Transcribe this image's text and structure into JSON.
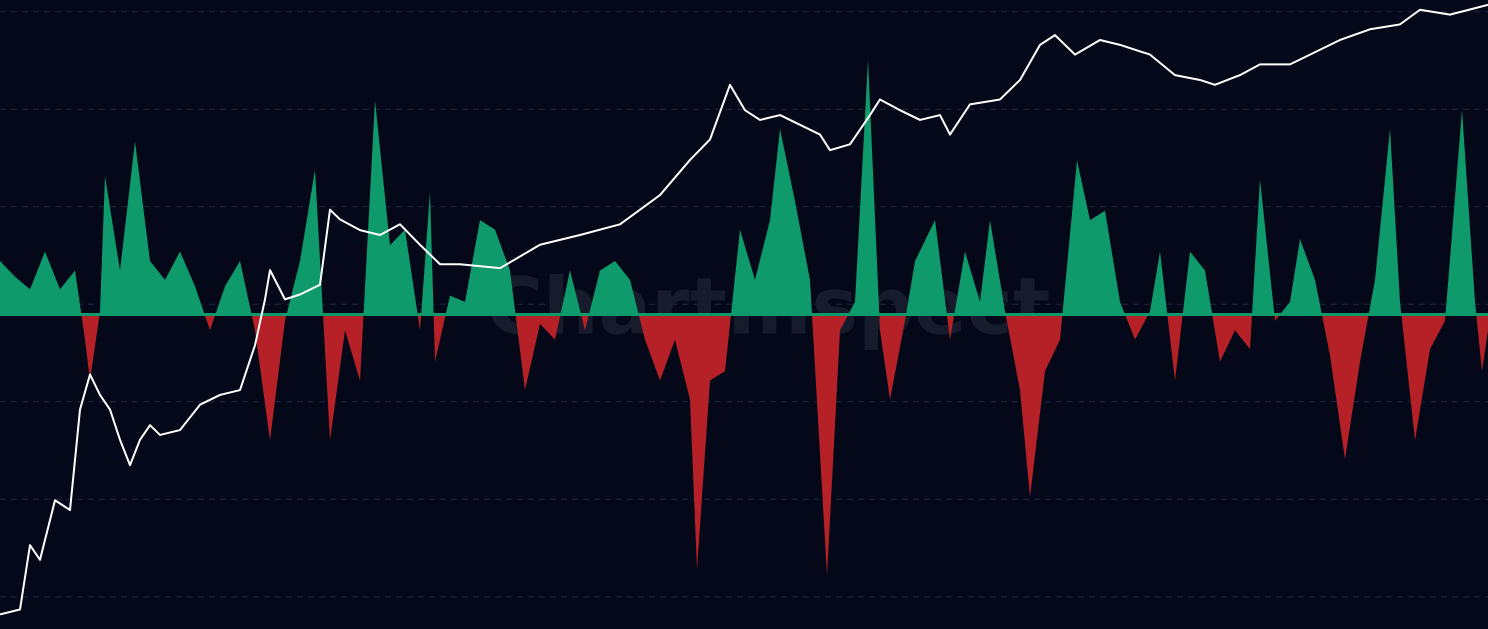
{
  "chart_data": {
    "type": "area",
    "watermark": "ChartInspect",
    "xlim": [
      0,
      1488
    ],
    "ylim": [
      -100,
      100
    ],
    "y2lim": [
      -0.33,
      6.12
    ],
    "y2ticks": [
      0,
      1,
      2,
      3,
      4,
      5,
      6
    ],
    "grid": true,
    "background": "#050818",
    "zero_line_color": "#0d9a6a",
    "series": [
      {
        "type": "area",
        "positive_color": "#0e9a6b",
        "negative_color": "#b52126",
        "x": [
          0,
          15,
          30,
          45,
          60,
          75,
          85,
          90,
          100,
          105,
          120,
          135,
          150,
          165,
          180,
          195,
          210,
          225,
          240,
          255,
          270,
          285,
          300,
          315,
          330,
          345,
          360,
          375,
          390,
          405,
          420,
          430,
          435,
          450,
          465,
          480,
          495,
          510,
          525,
          540,
          555,
          570,
          585,
          600,
          615,
          630,
          645,
          660,
          675,
          690,
          697,
          710,
          725,
          740,
          755,
          770,
          780,
          795,
          810,
          827,
          840,
          855,
          868,
          880,
          890,
          905,
          915,
          935,
          950,
          965,
          980,
          990,
          1005,
          1020,
          1030,
          1045,
          1060,
          1077,
          1090,
          1105,
          1120,
          1135,
          1150,
          1160,
          1175,
          1190,
          1205,
          1220,
          1235,
          1250,
          1260,
          1275,
          1290,
          1300,
          1315,
          1330,
          1345,
          1360,
          1375,
          1390,
          1400,
          1415,
          1430,
          1445,
          1462,
          1475,
          1482,
          1488
        ],
        "values": [
          17,
          12,
          8,
          20,
          8,
          14,
          -8,
          -21,
          1,
          44,
          14,
          55,
          17,
          11,
          20,
          9,
          -5,
          9,
          17,
          -5,
          -40,
          -2,
          17,
          46,
          -40,
          -5,
          -21,
          68,
          22,
          27,
          -5,
          39,
          -15,
          6,
          4,
          30,
          27,
          14,
          -24,
          -3,
          -8,
          14,
          -5,
          14,
          17,
          11,
          -8,
          -21,
          -8,
          -27,
          -81,
          -21,
          -18,
          27,
          11,
          30,
          59,
          36,
          11,
          -83,
          -5,
          4,
          81,
          -5,
          -27,
          -2,
          17,
          30,
          -8,
          20,
          4,
          30,
          1,
          -24,
          -58,
          -18,
          -8,
          49,
          30,
          33,
          4,
          -8,
          1,
          20,
          -21,
          20,
          14,
          -15,
          -5,
          -11,
          43,
          -2,
          4,
          24,
          11,
          -13,
          -46,
          -15,
          11,
          59,
          4,
          -40,
          -11,
          -2,
          65,
          4,
          -18,
          -5
        ]
      },
      {
        "type": "line",
        "axis": "y2",
        "color": "#ffffff",
        "x": [
          0,
          20,
          30,
          40,
          55,
          70,
          80,
          90,
          100,
          110,
          120,
          130,
          140,
          150,
          160,
          180,
          200,
          220,
          240,
          255,
          265,
          270,
          285,
          300,
          320,
          330,
          340,
          360,
          380,
          400,
          420,
          440,
          460,
          500,
          540,
          580,
          620,
          660,
          690,
          710,
          730,
          745,
          760,
          780,
          800,
          820,
          830,
          850,
          870,
          880,
          900,
          920,
          940,
          950,
          970,
          1000,
          1020,
          1040,
          1055,
          1075,
          1100,
          1120,
          1150,
          1175,
          1200,
          1215,
          1240,
          1260,
          1290,
          1320,
          1340,
          1370,
          1400,
          1420,
          1450,
          1488
        ],
        "values": [
          -0.18,
          -0.13,
          0.53,
          0.38,
          0.99,
          0.89,
          1.92,
          2.28,
          2.07,
          1.92,
          1.61,
          1.35,
          1.61,
          1.76,
          1.66,
          1.71,
          1.97,
          2.07,
          2.12,
          2.58,
          3.05,
          3.35,
          3.05,
          3.1,
          3.2,
          3.97,
          3.87,
          3.76,
          3.71,
          3.82,
          3.61,
          3.41,
          3.41,
          3.37,
          3.61,
          3.71,
          3.82,
          4.12,
          4.48,
          4.69,
          5.25,
          4.99,
          4.89,
          4.94,
          4.84,
          4.74,
          4.58,
          4.64,
          4.94,
          5.1,
          4.99,
          4.89,
          4.94,
          4.74,
          5.05,
          5.1,
          5.3,
          5.66,
          5.76,
          5.56,
          5.71,
          5.66,
          5.56,
          5.35,
          5.3,
          5.25,
          5.35,
          5.46,
          5.46,
          5.61,
          5.71,
          5.82,
          5.87,
          6.02,
          5.97,
          6.07
        ]
      }
    ]
  }
}
